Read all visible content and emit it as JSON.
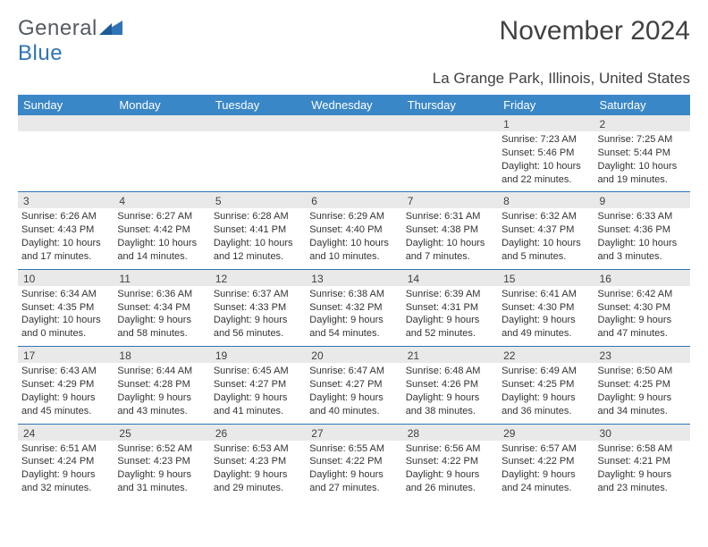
{
  "brand": {
    "name_a": "General",
    "name_b": "Blue",
    "shape_color": "#2f74b5"
  },
  "header": {
    "title": "November 2024",
    "location": "La Grange Park, Illinois, United States"
  },
  "colors": {
    "header_bg": "#3a87c8",
    "header_fg": "#ffffff",
    "daynum_bg": "#e9e9e9",
    "rule": "#2f74b5",
    "text": "#333333"
  },
  "weekday_labels": [
    "Sunday",
    "Monday",
    "Tuesday",
    "Wednesday",
    "Thursday",
    "Friday",
    "Saturday"
  ],
  "weeks": [
    [
      {
        "day": "",
        "empty": true
      },
      {
        "day": "",
        "empty": true
      },
      {
        "day": "",
        "empty": true
      },
      {
        "day": "",
        "empty": true
      },
      {
        "day": "",
        "empty": true
      },
      {
        "day": "1",
        "sunrise": "Sunrise: 7:23 AM",
        "sunset": "Sunset: 5:46 PM",
        "daylight": "Daylight: 10 hours and 22 minutes."
      },
      {
        "day": "2",
        "sunrise": "Sunrise: 7:25 AM",
        "sunset": "Sunset: 5:44 PM",
        "daylight": "Daylight: 10 hours and 19 minutes."
      }
    ],
    [
      {
        "day": "3",
        "sunrise": "Sunrise: 6:26 AM",
        "sunset": "Sunset: 4:43 PM",
        "daylight": "Daylight: 10 hours and 17 minutes."
      },
      {
        "day": "4",
        "sunrise": "Sunrise: 6:27 AM",
        "sunset": "Sunset: 4:42 PM",
        "daylight": "Daylight: 10 hours and 14 minutes."
      },
      {
        "day": "5",
        "sunrise": "Sunrise: 6:28 AM",
        "sunset": "Sunset: 4:41 PM",
        "daylight": "Daylight: 10 hours and 12 minutes."
      },
      {
        "day": "6",
        "sunrise": "Sunrise: 6:29 AM",
        "sunset": "Sunset: 4:40 PM",
        "daylight": "Daylight: 10 hours and 10 minutes."
      },
      {
        "day": "7",
        "sunrise": "Sunrise: 6:31 AM",
        "sunset": "Sunset: 4:38 PM",
        "daylight": "Daylight: 10 hours and 7 minutes."
      },
      {
        "day": "8",
        "sunrise": "Sunrise: 6:32 AM",
        "sunset": "Sunset: 4:37 PM",
        "daylight": "Daylight: 10 hours and 5 minutes."
      },
      {
        "day": "9",
        "sunrise": "Sunrise: 6:33 AM",
        "sunset": "Sunset: 4:36 PM",
        "daylight": "Daylight: 10 hours and 3 minutes."
      }
    ],
    [
      {
        "day": "10",
        "sunrise": "Sunrise: 6:34 AM",
        "sunset": "Sunset: 4:35 PM",
        "daylight": "Daylight: 10 hours and 0 minutes."
      },
      {
        "day": "11",
        "sunrise": "Sunrise: 6:36 AM",
        "sunset": "Sunset: 4:34 PM",
        "daylight": "Daylight: 9 hours and 58 minutes."
      },
      {
        "day": "12",
        "sunrise": "Sunrise: 6:37 AM",
        "sunset": "Sunset: 4:33 PM",
        "daylight": "Daylight: 9 hours and 56 minutes."
      },
      {
        "day": "13",
        "sunrise": "Sunrise: 6:38 AM",
        "sunset": "Sunset: 4:32 PM",
        "daylight": "Daylight: 9 hours and 54 minutes."
      },
      {
        "day": "14",
        "sunrise": "Sunrise: 6:39 AM",
        "sunset": "Sunset: 4:31 PM",
        "daylight": "Daylight: 9 hours and 52 minutes."
      },
      {
        "day": "15",
        "sunrise": "Sunrise: 6:41 AM",
        "sunset": "Sunset: 4:30 PM",
        "daylight": "Daylight: 9 hours and 49 minutes."
      },
      {
        "day": "16",
        "sunrise": "Sunrise: 6:42 AM",
        "sunset": "Sunset: 4:30 PM",
        "daylight": "Daylight: 9 hours and 47 minutes."
      }
    ],
    [
      {
        "day": "17",
        "sunrise": "Sunrise: 6:43 AM",
        "sunset": "Sunset: 4:29 PM",
        "daylight": "Daylight: 9 hours and 45 minutes."
      },
      {
        "day": "18",
        "sunrise": "Sunrise: 6:44 AM",
        "sunset": "Sunset: 4:28 PM",
        "daylight": "Daylight: 9 hours and 43 minutes."
      },
      {
        "day": "19",
        "sunrise": "Sunrise: 6:45 AM",
        "sunset": "Sunset: 4:27 PM",
        "daylight": "Daylight: 9 hours and 41 minutes."
      },
      {
        "day": "20",
        "sunrise": "Sunrise: 6:47 AM",
        "sunset": "Sunset: 4:27 PM",
        "daylight": "Daylight: 9 hours and 40 minutes."
      },
      {
        "day": "21",
        "sunrise": "Sunrise: 6:48 AM",
        "sunset": "Sunset: 4:26 PM",
        "daylight": "Daylight: 9 hours and 38 minutes."
      },
      {
        "day": "22",
        "sunrise": "Sunrise: 6:49 AM",
        "sunset": "Sunset: 4:25 PM",
        "daylight": "Daylight: 9 hours and 36 minutes."
      },
      {
        "day": "23",
        "sunrise": "Sunrise: 6:50 AM",
        "sunset": "Sunset: 4:25 PM",
        "daylight": "Daylight: 9 hours and 34 minutes."
      }
    ],
    [
      {
        "day": "24",
        "sunrise": "Sunrise: 6:51 AM",
        "sunset": "Sunset: 4:24 PM",
        "daylight": "Daylight: 9 hours and 32 minutes."
      },
      {
        "day": "25",
        "sunrise": "Sunrise: 6:52 AM",
        "sunset": "Sunset: 4:23 PM",
        "daylight": "Daylight: 9 hours and 31 minutes."
      },
      {
        "day": "26",
        "sunrise": "Sunrise: 6:53 AM",
        "sunset": "Sunset: 4:23 PM",
        "daylight": "Daylight: 9 hours and 29 minutes."
      },
      {
        "day": "27",
        "sunrise": "Sunrise: 6:55 AM",
        "sunset": "Sunset: 4:22 PM",
        "daylight": "Daylight: 9 hours and 27 minutes."
      },
      {
        "day": "28",
        "sunrise": "Sunrise: 6:56 AM",
        "sunset": "Sunset: 4:22 PM",
        "daylight": "Daylight: 9 hours and 26 minutes."
      },
      {
        "day": "29",
        "sunrise": "Sunrise: 6:57 AM",
        "sunset": "Sunset: 4:22 PM",
        "daylight": "Daylight: 9 hours and 24 minutes."
      },
      {
        "day": "30",
        "sunrise": "Sunrise: 6:58 AM",
        "sunset": "Sunset: 4:21 PM",
        "daylight": "Daylight: 9 hours and 23 minutes."
      }
    ]
  ]
}
